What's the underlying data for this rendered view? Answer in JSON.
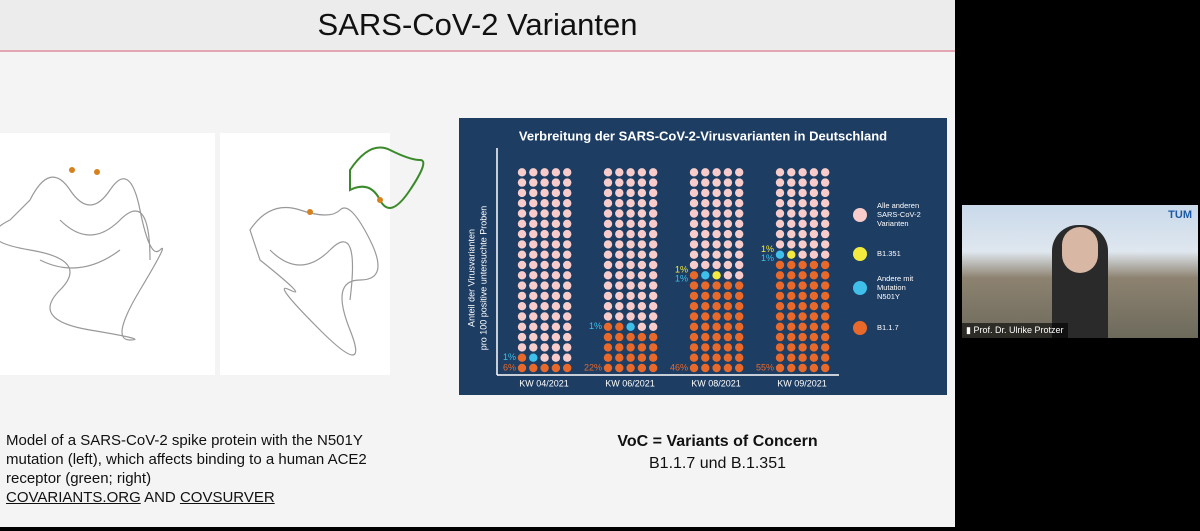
{
  "slide": {
    "title": "SARS-CoV-2 Varianten",
    "caption": [
      "Model of a SARS-CoV-2 spike protein with the N501Y",
      "mutation (left), which affects binding to a human ACE2",
      "receptor (green; right)"
    ],
    "links": [
      "COVARIANTS.ORG",
      "COVSURVER"
    ],
    "link_joiner": "AND",
    "voc_title": "VoC = Variants of Concern",
    "voc_list": "B1.1.7 und B.1.351"
  },
  "chart_data": {
    "type": "waffle",
    "title": "Verbreitung der SARS-CoV-2-Virusvarianten in Deutschland",
    "y_label": [
      "Anteil der Virusvarianten",
      "pro 100 positive untersuchte Proben"
    ],
    "categories": [
      "KW 04/2021",
      "KW 06/2021",
      "KW 08/2021",
      "KW 09/2021"
    ],
    "series": [
      {
        "name": "B1.1.7",
        "color": "#e8692a",
        "values": [
          6,
          22,
          46,
          55
        ],
        "value_labels": [
          "6%",
          "22%",
          "46%",
          "55%"
        ]
      },
      {
        "name": "Andere mit Mutation N501Y",
        "color": "#3ec0ea",
        "values": [
          1,
          1,
          1,
          1
        ],
        "value_labels": [
          "1%",
          "1%",
          "1%",
          "1%"
        ]
      },
      {
        "name": "B1.351",
        "color": "#f2ea3e",
        "values": [
          0,
          0,
          1,
          1
        ],
        "value_labels": [
          null,
          null,
          "1%",
          "1%"
        ]
      },
      {
        "name": "Alle anderen SARS-CoV-2 Varianten",
        "color": "#f7cccb",
        "values": [
          93,
          77,
          52,
          43
        ]
      }
    ]
  },
  "video": {
    "speaker": "Prof. Dr. Ulrike Protzer",
    "logo": "TUM"
  }
}
